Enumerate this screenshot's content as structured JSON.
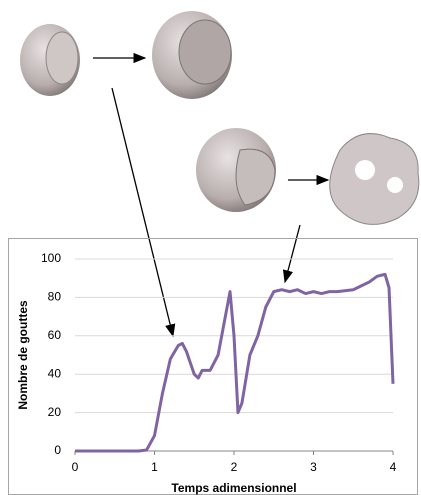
{
  "chart_data": {
    "type": "line",
    "x_label": "Temps adimensionnel",
    "y_label": "Nombre de gouttes",
    "x": [
      0,
      0.8,
      0.9,
      1.0,
      1.1,
      1.2,
      1.3,
      1.35,
      1.4,
      1.5,
      1.55,
      1.6,
      1.7,
      1.8,
      1.9,
      1.95,
      2.0,
      2.05,
      2.1,
      2.2,
      2.3,
      2.4,
      2.5,
      2.6,
      2.7,
      2.8,
      2.9,
      3.0,
      3.1,
      3.2,
      3.3,
      3.5,
      3.6,
      3.7,
      3.8,
      3.9,
      3.95,
      4.0
    ],
    "values": [
      0,
      0,
      0.5,
      8,
      30,
      48,
      55,
      56,
      52,
      40,
      38,
      42,
      42,
      50,
      72,
      83,
      60,
      20,
      25,
      50,
      60,
      75,
      83,
      84,
      83,
      84,
      82,
      83,
      82,
      83,
      83,
      84,
      86,
      88,
      91,
      92,
      85,
      35
    ],
    "color": "#8064a2",
    "xlim": [
      0,
      4
    ],
    "xticks": [
      0,
      1,
      2,
      3,
      4
    ],
    "ylim": [
      0,
      100
    ],
    "yticks": [
      0,
      20,
      40,
      60,
      80,
      100
    ],
    "grid": true
  }
}
